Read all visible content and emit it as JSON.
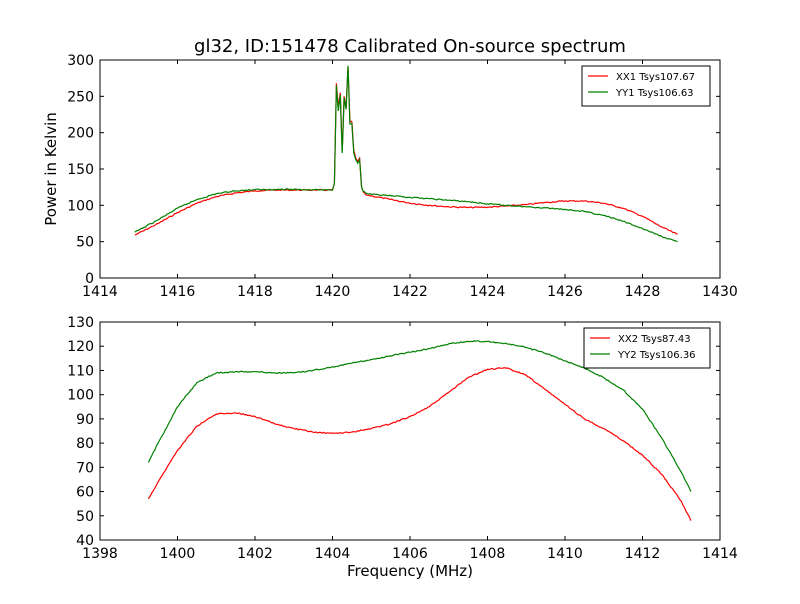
{
  "chart_data": [
    {
      "type": "line",
      "title": "gl32, ID:151478 Calibrated On-source spectrum",
      "xlabel": "",
      "ylabel": "Power in Kelvin",
      "xlim": [
        1414,
        1430
      ],
      "ylim": [
        0,
        300
      ],
      "xticks": [
        1414,
        1416,
        1418,
        1420,
        1422,
        1424,
        1426,
        1428,
        1430
      ],
      "yticks": [
        0,
        50,
        100,
        150,
        200,
        250,
        300
      ],
      "legend": "top-right",
      "series": [
        {
          "name": "XX1 Tsys107.67",
          "color": "#ff0000",
          "x": [
            1414.9,
            1415.5,
            1416.0,
            1416.5,
            1417.0,
            1417.5,
            1418.0,
            1418.5,
            1419.0,
            1419.5,
            1420.0,
            1420.05,
            1420.1,
            1420.15,
            1420.2,
            1420.25,
            1420.3,
            1420.35,
            1420.4,
            1420.45,
            1420.5,
            1420.55,
            1420.6,
            1420.65,
            1420.7,
            1420.75,
            1420.8,
            1420.85,
            1420.9,
            1421.0,
            1421.5,
            1422.0,
            1422.5,
            1423.0,
            1423.5,
            1424.0,
            1424.5,
            1425.0,
            1425.5,
            1426.0,
            1426.5,
            1427.0,
            1427.5,
            1428.0,
            1428.5,
            1428.9
          ],
          "y": [
            59,
            75,
            90,
            103,
            112,
            117,
            120,
            121,
            121,
            121,
            121,
            130,
            268,
            235,
            255,
            175,
            250,
            235,
            290,
            215,
            215,
            175,
            165,
            160,
            165,
            125,
            118,
            115,
            114,
            113,
            108,
            103,
            100,
            98,
            97,
            97.5,
            99,
            101,
            104,
            106,
            106,
            103,
            96,
            85,
            70,
            60
          ]
        },
        {
          "name": "YY1 Tsys106.63",
          "color": "#008000",
          "x": [
            1414.9,
            1415.5,
            1416.0,
            1416.5,
            1417.0,
            1417.5,
            1418.0,
            1418.5,
            1419.0,
            1419.5,
            1420.0,
            1420.05,
            1420.1,
            1420.15,
            1420.2,
            1420.25,
            1420.3,
            1420.35,
            1420.4,
            1420.45,
            1420.5,
            1420.55,
            1420.6,
            1420.65,
            1420.7,
            1420.75,
            1420.8,
            1420.85,
            1420.9,
            1421.0,
            1421.5,
            1422.0,
            1422.5,
            1423.0,
            1423.5,
            1424.0,
            1424.5,
            1425.0,
            1425.5,
            1426.0,
            1426.5,
            1427.0,
            1427.5,
            1428.0,
            1428.5,
            1428.9
          ],
          "y": [
            63,
            80,
            96,
            108,
            116,
            120,
            121.5,
            122,
            122,
            121.5,
            121,
            130,
            265,
            230,
            252,
            172,
            248,
            232,
            292,
            212,
            212,
            172,
            163,
            158,
            163,
            125,
            119,
            117,
            116,
            115,
            113,
            111,
            109,
            107,
            105,
            102,
            100,
            98,
            96.5,
            94.5,
            91.5,
            86,
            78,
            68,
            57,
            50
          ]
        }
      ]
    },
    {
      "type": "line",
      "title": "",
      "xlabel": "Frequency (MHz)",
      "ylabel": "",
      "xlim": [
        1398,
        1414
      ],
      "ylim": [
        40,
        130
      ],
      "xticks": [
        1398,
        1400,
        1402,
        1404,
        1406,
        1408,
        1410,
        1412,
        1414
      ],
      "yticks": [
        40,
        50,
        60,
        70,
        80,
        90,
        100,
        110,
        120,
        130
      ],
      "legend": "top-right",
      "series": [
        {
          "name": "XX2 Tsys87.43",
          "color": "#ff0000",
          "x": [
            1399.25,
            1399.5,
            1400.0,
            1400.5,
            1401.0,
            1401.5,
            1402.0,
            1402.5,
            1403.0,
            1403.5,
            1404.0,
            1404.5,
            1405.0,
            1405.5,
            1406.0,
            1406.5,
            1407.0,
            1407.5,
            1408.0,
            1408.5,
            1409.0,
            1409.5,
            1410.0,
            1410.5,
            1411.0,
            1411.5,
            1412.0,
            1412.5,
            1413.0,
            1413.25
          ],
          "y": [
            57,
            64,
            77,
            87,
            92,
            92.5,
            91,
            88,
            86,
            84.5,
            84,
            84.5,
            86,
            88,
            91,
            95,
            101,
            107,
            110.5,
            111,
            108,
            102,
            96,
            90,
            86,
            81,
            75,
            67,
            56,
            48
          ]
        },
        {
          "name": "YY2 Tsys106.36",
          "color": "#008000",
          "x": [
            1399.25,
            1399.5,
            1400.0,
            1400.5,
            1401.0,
            1401.5,
            1402.0,
            1402.5,
            1403.0,
            1403.5,
            1404.0,
            1404.5,
            1405.0,
            1405.5,
            1406.0,
            1406.5,
            1407.0,
            1407.5,
            1408.0,
            1408.5,
            1409.0,
            1409.5,
            1410.0,
            1410.5,
            1411.0,
            1411.5,
            1412.0,
            1412.5,
            1413.0,
            1413.25
          ],
          "y": [
            72,
            80,
            95,
            105,
            109,
            109.5,
            109.5,
            109,
            109,
            110,
            111.5,
            113,
            114.5,
            116,
            117.5,
            119,
            121,
            122,
            122,
            121,
            119.5,
            117,
            114,
            111,
            107,
            102,
            94,
            82,
            68,
            60
          ]
        }
      ]
    }
  ]
}
